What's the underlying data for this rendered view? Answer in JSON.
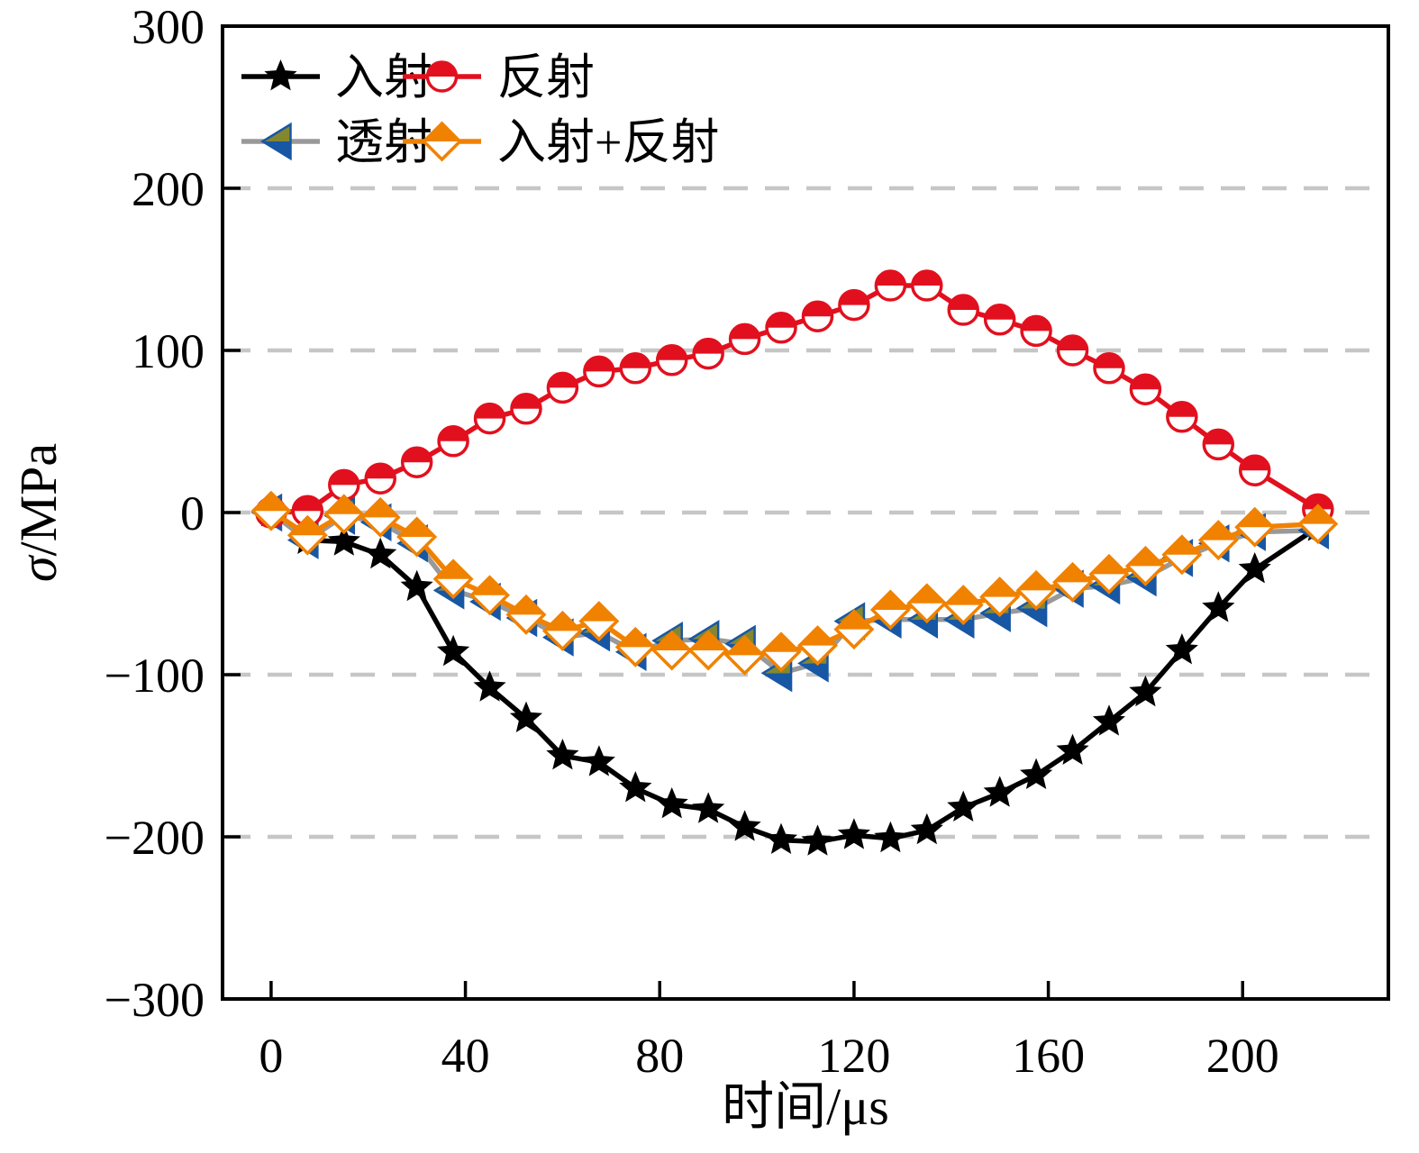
{
  "figure": {
    "background": "#ffffff",
    "frame_color": "#000000"
  },
  "chart_data": {
    "type": "line",
    "title": "",
    "xlabel": "时间/μs",
    "ylabel": "σ/MPa",
    "xlim": [
      -10,
      230
    ],
    "ylim": [
      -300,
      300
    ],
    "x_ticks": [
      0,
      40,
      80,
      120,
      160,
      200
    ],
    "y_ticks": [
      300,
      200,
      100,
      0,
      -100,
      -200,
      -300
    ],
    "y_tick_labels": [
      "300",
      "200",
      "100",
      "0",
      "−100",
      "−200",
      "−300"
    ],
    "x_tick_labels": [
      "0",
      "40",
      "80",
      "120",
      "160",
      "200"
    ],
    "gridlines_y": [
      200,
      100,
      0,
      -100,
      -200
    ],
    "grid_on": true,
    "grid_color": "#c6c6c6",
    "legend_position": "top-left",
    "x": [
      0,
      7.5,
      15,
      22.5,
      30,
      37.5,
      45,
      52.5,
      60,
      67.5,
      75,
      82.5,
      90,
      97.5,
      105,
      112.5,
      120,
      127.5,
      135,
      142.5,
      150,
      157.5,
      165,
      172.5,
      180,
      187.5,
      195,
      202.5,
      215.5
    ],
    "series": [
      {
        "id": "incident",
        "label": "入射",
        "line_color": "#000000",
        "marker": "star",
        "marker_fill": "#000000",
        "values": [
          0,
          -17,
          -18,
          -26,
          -46,
          -86,
          -108,
          -127,
          -150,
          -154,
          -170,
          -180,
          -183,
          -194,
          -202,
          -203,
          -199,
          -201,
          -196,
          -182,
          -173,
          -162,
          -147,
          -129,
          -111,
          -85,
          -59,
          -35,
          -9
        ]
      },
      {
        "id": "transmitted",
        "label": "透射",
        "line_color": "#999999",
        "marker": "half-left-triangle",
        "marker_fill": "#1857a4",
        "marker_fill2": "#85872f",
        "values": [
          0,
          -17,
          -2,
          -6,
          -19,
          -48,
          -55,
          -65,
          -77,
          -74,
          -86,
          -79,
          -78,
          -81,
          -99,
          -93,
          -67,
          -66,
          -66,
          -66,
          -62,
          -59,
          -47,
          -45,
          -40,
          -28,
          -19,
          -12,
          -11
        ]
      },
      {
        "id": "reflected",
        "label": "反射",
        "line_color": "#e2101e",
        "marker": "half-circle",
        "marker_fill": "#e2101e",
        "values": [
          0,
          1,
          17,
          21,
          31,
          44,
          58,
          64,
          77,
          87,
          89,
          94,
          98,
          107,
          114,
          121,
          128,
          140,
          140,
          125,
          119,
          112,
          100,
          89,
          76,
          59,
          42,
          26,
          2
        ]
      },
      {
        "id": "incident_plus_reflected",
        "label": "入射+反射",
        "line_color": "#f08200",
        "marker": "half-diamond",
        "marker_fill": "#f08200",
        "values": [
          1,
          -14,
          -1,
          -3,
          -15,
          -41,
          -51,
          -63,
          -73,
          -67,
          -83,
          -85,
          -85,
          -88,
          -86,
          -82,
          -72,
          -60,
          -56,
          -57,
          -52,
          -48,
          -43,
          -38,
          -33,
          -26,
          -17,
          -9,
          -7
        ]
      }
    ],
    "legend_rows": [
      [
        "incident",
        "reflected"
      ],
      [
        "transmitted",
        "incident_plus_reflected"
      ]
    ]
  }
}
